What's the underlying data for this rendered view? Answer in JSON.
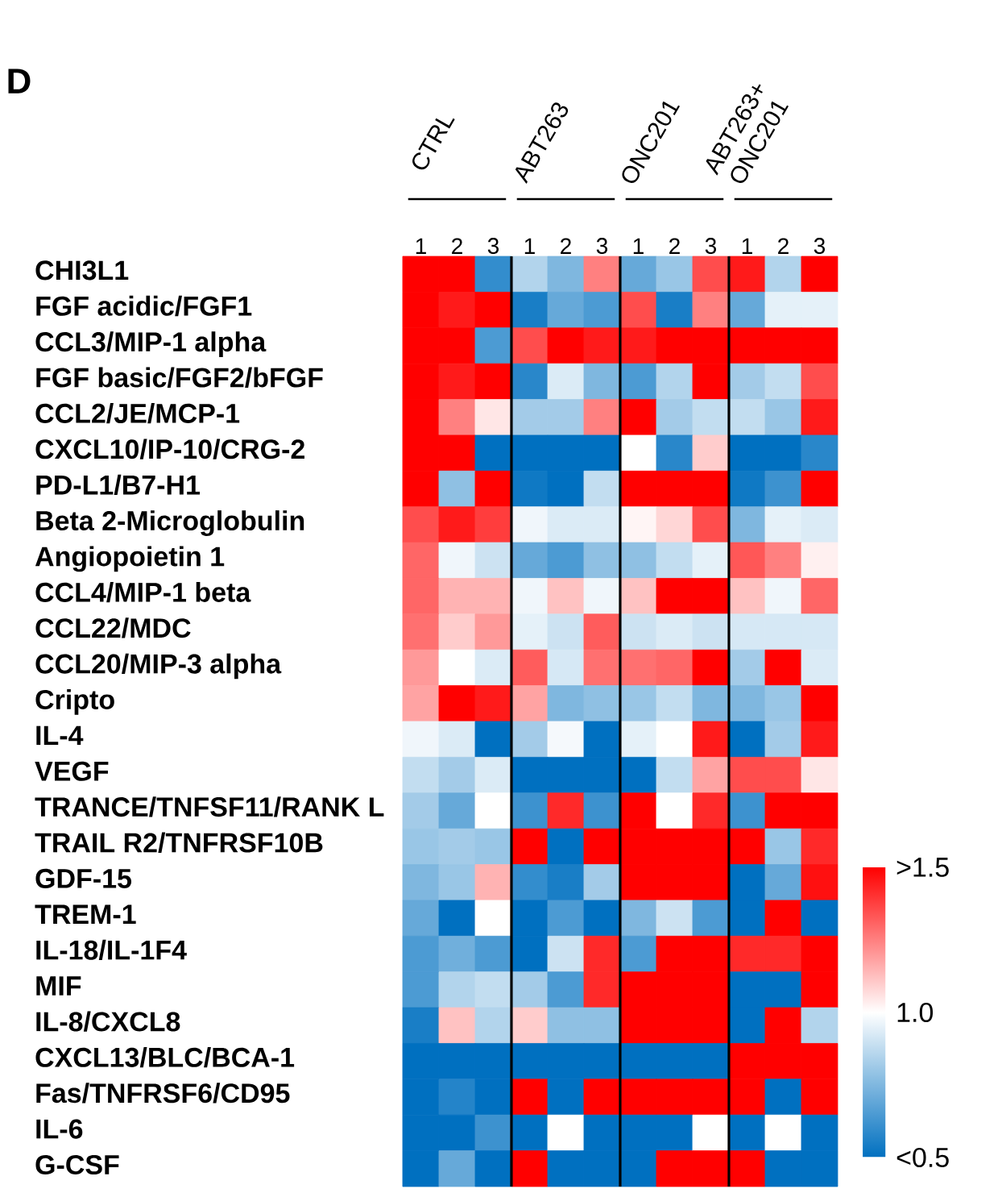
{
  "chart_data": {
    "type": "heatmap",
    "title": "D",
    "annotations": [
      "CTRL",
      "ABT263",
      "ONC201",
      "ABT263+ ONC201"
    ],
    "categories": [
      "1",
      "2",
      "3",
      "1",
      "2",
      "3",
      "1",
      "2",
      "3",
      "1",
      "2",
      "3"
    ],
    "y_categories": [
      "CHI3L1",
      "FGF acidic/FGF1",
      "CCL3/MIP-1 alpha",
      "FGF basic/FGF2/bFGF",
      "CCL2/JE/MCP-1",
      "CXCL10/IP-10/CRG-2",
      "PD-L1/B7-H1",
      "Beta 2-Microglobulin",
      "Angiopoietin 1",
      "CCL4/MIP-1 beta",
      "CCL22/MDC",
      "CCL20/MIP-3 alpha",
      "Cripto",
      "IL-4",
      "VEGF",
      "TRANCE/TNFSF11/RANK L",
      "TRAIL R2/TNFRSF10B",
      "GDF-15",
      "TREM-1",
      "IL-18/IL-1F4",
      "MIF",
      "IL-8/CXCL8",
      "CXCL13/BLC/BCA-1",
      "Fas/TNFRSF6/CD95",
      "IL-6",
      "G-CSF"
    ],
    "cells": [
      [
        1.5,
        1.5,
        0.6,
        0.85,
        0.75,
        1.25,
        0.7,
        0.8,
        1.35,
        1.45,
        0.85,
        1.5
      ],
      [
        1.5,
        1.45,
        1.5,
        0.55,
        0.7,
        0.65,
        1.35,
        0.55,
        1.25,
        0.7,
        0.95,
        0.95
      ],
      [
        1.5,
        1.5,
        0.65,
        1.35,
        1.5,
        1.45,
        1.45,
        1.5,
        1.5,
        1.5,
        1.5,
        1.5
      ],
      [
        1.5,
        1.45,
        1.5,
        0.58,
        0.93,
        0.75,
        0.65,
        0.85,
        1.5,
        0.82,
        0.88,
        1.35
      ],
      [
        1.5,
        1.25,
        1.05,
        0.82,
        0.82,
        1.25,
        1.5,
        0.82,
        0.88,
        0.88,
        0.8,
        1.45
      ],
      [
        1.5,
        1.5,
        0.5,
        0.5,
        0.5,
        0.5,
        1.0,
        0.58,
        1.1,
        0.5,
        0.5,
        0.58
      ],
      [
        1.5,
        0.78,
        1.5,
        0.53,
        0.5,
        0.88,
        1.5,
        1.5,
        1.5,
        0.53,
        0.62,
        1.5
      ],
      [
        1.35,
        1.45,
        1.38,
        0.97,
        0.93,
        0.93,
        1.02,
        1.08,
        1.35,
        0.75,
        0.95,
        0.93
      ],
      [
        1.3,
        0.97,
        0.9,
        0.7,
        0.65,
        0.78,
        0.78,
        0.88,
        0.95,
        1.33,
        1.25,
        1.03
      ],
      [
        1.3,
        1.15,
        1.15,
        0.97,
        1.12,
        0.97,
        1.12,
        1.5,
        1.5,
        1.12,
        0.97,
        1.3
      ],
      [
        1.28,
        1.1,
        1.2,
        0.95,
        0.9,
        1.32,
        0.9,
        0.93,
        0.9,
        0.92,
        0.92,
        0.92
      ],
      [
        1.2,
        1.0,
        0.93,
        1.32,
        0.92,
        1.28,
        1.28,
        1.3,
        1.5,
        0.82,
        1.5,
        0.93
      ],
      [
        1.18,
        1.5,
        1.45,
        1.18,
        0.75,
        0.78,
        0.8,
        0.88,
        0.75,
        0.75,
        0.8,
        1.5
      ],
      [
        0.97,
        0.93,
        0.5,
        0.82,
        0.98,
        0.5,
        0.95,
        1.0,
        1.45,
        0.5,
        0.82,
        1.45
      ],
      [
        0.88,
        0.82,
        0.93,
        0.5,
        0.5,
        0.5,
        0.5,
        0.88,
        1.18,
        1.35,
        1.35,
        1.05
      ],
      [
        0.82,
        0.7,
        1.0,
        0.62,
        1.42,
        0.62,
        1.5,
        1.0,
        1.42,
        0.62,
        1.5,
        1.5
      ],
      [
        0.8,
        0.82,
        0.8,
        1.5,
        0.5,
        1.5,
        1.5,
        1.5,
        1.5,
        1.5,
        0.8,
        1.42
      ],
      [
        0.75,
        0.8,
        1.15,
        0.6,
        0.55,
        0.82,
        1.5,
        1.5,
        1.5,
        0.5,
        0.7,
        1.47
      ],
      [
        0.7,
        0.5,
        1.0,
        0.5,
        0.65,
        0.5,
        0.75,
        0.9,
        0.65,
        0.5,
        1.5,
        0.5
      ],
      [
        0.65,
        0.72,
        0.65,
        0.5,
        0.9,
        1.42,
        0.65,
        1.5,
        1.5,
        1.42,
        1.42,
        1.5
      ],
      [
        0.65,
        0.85,
        0.88,
        0.82,
        0.65,
        1.42,
        1.5,
        1.5,
        1.5,
        0.5,
        0.5,
        1.5
      ],
      [
        0.55,
        1.12,
        0.85,
        1.1,
        0.78,
        0.78,
        1.5,
        1.5,
        1.5,
        0.5,
        1.5,
        0.85
      ],
      [
        0.5,
        0.5,
        0.5,
        0.5,
        0.5,
        0.5,
        0.5,
        0.5,
        0.5,
        1.5,
        1.5,
        1.5
      ],
      [
        0.5,
        0.57,
        0.5,
        1.5,
        0.5,
        1.5,
        1.5,
        1.5,
        1.5,
        1.5,
        0.5,
        1.5
      ],
      [
        0.5,
        0.5,
        0.62,
        0.5,
        1.0,
        0.5,
        0.5,
        0.5,
        1.0,
        0.5,
        1.0,
        0.5
      ],
      [
        0.5,
        0.7,
        0.5,
        1.5,
        0.5,
        0.5,
        0.5,
        1.5,
        1.5,
        1.5,
        0.5,
        0.5
      ]
    ],
    "clim": [
      0.5,
      1.5
    ],
    "cticks": [
      {
        "value": 1.5,
        "label": ">1.5"
      },
      {
        "value": 1.0,
        "label": "1.0"
      },
      {
        "value": 0.5,
        "label": "<0.5"
      }
    ]
  }
}
